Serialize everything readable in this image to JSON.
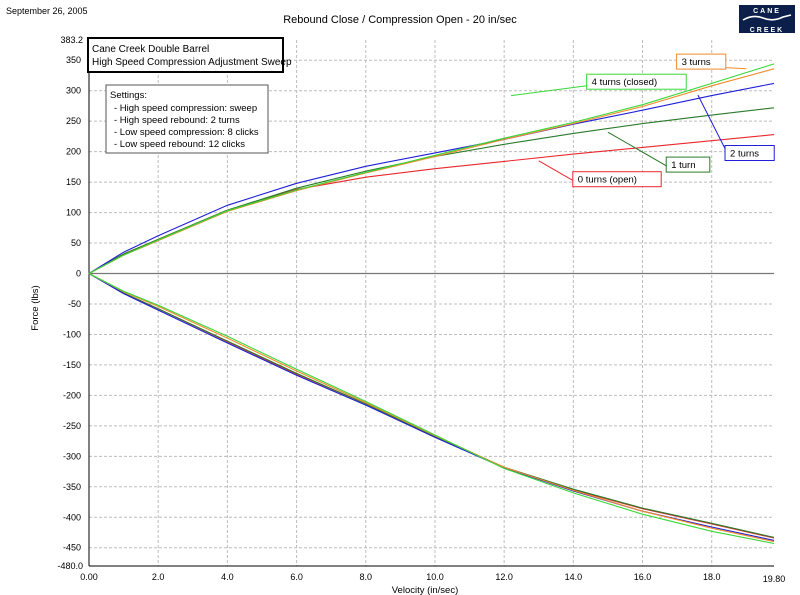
{
  "date": "September 26, 2005",
  "chart_title": "Rebound Close / Compression Open  -  20 in/sec",
  "logo": {
    "line1": "CANE",
    "line2": "CREEK"
  },
  "info_box": {
    "line1": "Cane Creek Double Barrel",
    "line2": "High Speed Compression Adjustment Sweep"
  },
  "settings": {
    "heading": "Settings:",
    "items": [
      "- High speed compression: sweep",
      "- High speed rebound: 2 turns",
      "- Low speed compression: 8 clicks",
      "- Low speed rebound: 12 clicks"
    ]
  },
  "colors": {
    "red": "#e8282c",
    "darkgreen": "#2a7a2a",
    "blue": "#1f1fd8",
    "orange": "#f08a2a",
    "green": "#38d838"
  },
  "chart_data": {
    "type": "line",
    "xlabel": "Velocity (in/sec)",
    "ylabel": "Force (lbs)",
    "xlim": [
      0.0,
      19.8
    ],
    "ylim": [
      -480.0,
      383.2
    ],
    "x_ticks": [
      0,
      2,
      4,
      6,
      8,
      10,
      12,
      14,
      16,
      18
    ],
    "x_tick_labels": [
      "0.00",
      "2.0",
      "4.0",
      "6.0",
      "8.0",
      "10.0",
      "12.0",
      "14.0",
      "16.0",
      "18.0"
    ],
    "x_end_label": "19.80",
    "y_ticks": [
      350,
      300,
      250,
      200,
      150,
      100,
      50,
      0,
      -50,
      -100,
      -150,
      -200,
      -250,
      -300,
      -350,
      -400,
      -450
    ],
    "y_tick_labels": [
      "350",
      "300",
      "250",
      "200",
      "150",
      "100",
      "50",
      "0",
      "-50",
      "-100",
      "-150",
      "-200",
      "-250",
      "-300",
      "-350",
      "-400",
      "-450"
    ],
    "y_top_label": "383.2",
    "y_bottom_label": "-480.0",
    "grid": true,
    "series": [
      {
        "name": "0 turns (open)",
        "color": "red",
        "x": [
          0,
          1,
          2,
          4,
          6,
          8,
          10,
          12,
          14,
          16,
          18,
          19.8
        ],
        "y": [
          0,
          32,
          56,
          104,
          138,
          158,
          172,
          184,
          196,
          207,
          218,
          228
        ]
      },
      {
        "name": "1 turn",
        "color": "darkgreen",
        "x": [
          0,
          1,
          2,
          4,
          6,
          8,
          10,
          12,
          14,
          16,
          18,
          19.8
        ],
        "y": [
          0,
          32,
          56,
          104,
          140,
          168,
          192,
          212,
          230,
          246,
          260,
          272
        ]
      },
      {
        "name": "2 turns",
        "color": "blue",
        "x": [
          0,
          1,
          2,
          4,
          6,
          8,
          10,
          12,
          14,
          16,
          18,
          19.8
        ],
        "y": [
          0,
          35,
          62,
          112,
          148,
          176,
          198,
          220,
          245,
          268,
          292,
          312
        ]
      },
      {
        "name": "3 turns",
        "color": "orange",
        "x": [
          0,
          1,
          2,
          4,
          6,
          8,
          10,
          12,
          14,
          16,
          18,
          19.8
        ],
        "y": [
          0,
          30,
          54,
          102,
          136,
          165,
          192,
          220,
          246,
          274,
          308,
          336
        ]
      },
      {
        "name": "4 turns (closed)",
        "color": "green",
        "x": [
          0,
          1,
          2,
          4,
          6,
          8,
          10,
          12,
          14,
          16,
          18,
          19.8
        ],
        "y": [
          0,
          30,
          55,
          103,
          137,
          166,
          194,
          222,
          248,
          277,
          312,
          344
        ]
      },
      {
        "name": "",
        "color": "red",
        "x": [
          0,
          1,
          2,
          4,
          6,
          8,
          10,
          12,
          14,
          16,
          18,
          19.8
        ],
        "y": [
          0,
          -32,
          -58,
          -112,
          -165,
          -214,
          -268,
          -318,
          -355,
          -386,
          -411,
          -434
        ]
      },
      {
        "name": "",
        "color": "darkgreen",
        "x": [
          0,
          1,
          2,
          4,
          6,
          8,
          10,
          12,
          14,
          16,
          18,
          19.8
        ],
        "y": [
          0,
          -32,
          -58,
          -111,
          -164,
          -214,
          -268,
          -318,
          -354,
          -385,
          -410,
          -433
        ]
      },
      {
        "name": "",
        "color": "blue",
        "x": [
          0,
          1,
          2,
          4,
          6,
          8,
          10,
          12,
          14,
          16,
          18,
          19.8
        ],
        "y": [
          0,
          -33,
          -60,
          -114,
          -167,
          -216,
          -269,
          -319,
          -357,
          -390,
          -416,
          -438
        ]
      },
      {
        "name": "",
        "color": "orange",
        "x": [
          0,
          1,
          2,
          4,
          6,
          8,
          10,
          12,
          14,
          16,
          18,
          19.8
        ],
        "y": [
          0,
          -30,
          -54,
          -106,
          -160,
          -212,
          -266,
          -318,
          -356,
          -390,
          -418,
          -440
        ]
      },
      {
        "name": "",
        "color": "green",
        "x": [
          0,
          1,
          2,
          4,
          6,
          8,
          10,
          12,
          14,
          16,
          18,
          19.8
        ],
        "y": [
          0,
          -29,
          -52,
          -103,
          -157,
          -210,
          -265,
          -320,
          -360,
          -395,
          -423,
          -443
        ]
      }
    ],
    "annotations": [
      {
        "text": "3 turns",
        "color": "orange",
        "at": [
          17.1,
          342
        ],
        "point": [
          19.0,
          336
        ]
      },
      {
        "text": "4 turns (closed)",
        "color": "green",
        "at": [
          14.5,
          309
        ],
        "point": [
          12.2,
          292
        ]
      },
      {
        "text": "2 turns",
        "color": "blue",
        "at": [
          18.5,
          192
        ],
        "point": [
          17.6,
          293
        ]
      },
      {
        "text": "1 turn",
        "color": "darkgreen",
        "at": [
          16.8,
          173
        ],
        "point": [
          15.0,
          232
        ]
      },
      {
        "text": "0 turns (open)",
        "color": "red",
        "at": [
          14.1,
          149
        ],
        "point": [
          13.0,
          185
        ]
      }
    ]
  }
}
